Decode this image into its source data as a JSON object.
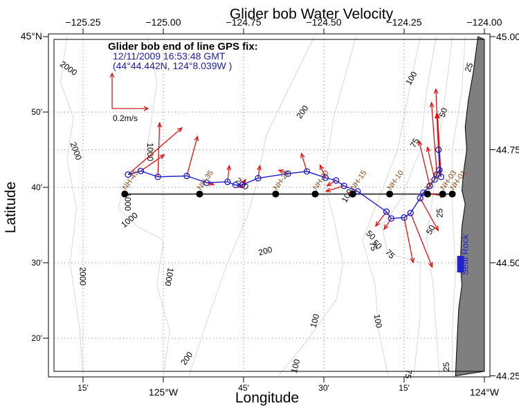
{
  "chart_data": {
    "type": "map",
    "title": "Glider bob Water Velocity",
    "xlabel": "Longitude",
    "ylabel": "Latitude",
    "xlim": [
      -125.33,
      -124.0
    ],
    "ylim": [
      44.25,
      45.0
    ],
    "grid": "dotted",
    "top_ticks": [
      {
        "value": -125.25,
        "label": "−125.25"
      },
      {
        "value": -125.0,
        "label": "−125.00"
      },
      {
        "value": -124.75,
        "label": "−124.75"
      },
      {
        "value": -124.5,
        "label": "−124.50"
      },
      {
        "value": -124.25,
        "label": "−124.25"
      },
      {
        "value": -124.0,
        "label": "−124.00"
      }
    ],
    "bottom_ticks": [
      {
        "value": -125.25,
        "label": "15'"
      },
      {
        "value": -125.0,
        "label": "125°W"
      },
      {
        "value": -124.75,
        "label": "45'"
      },
      {
        "value": -124.5,
        "label": "30'"
      },
      {
        "value": -124.25,
        "label": "15'"
      },
      {
        "value": -124.0,
        "label": "124°W"
      }
    ],
    "left_ticks": [
      {
        "value": 45.0,
        "label": "45°N"
      },
      {
        "value": 44.8333,
        "label": "50'"
      },
      {
        "value": 44.6667,
        "label": "40'"
      },
      {
        "value": 44.5,
        "label": "30'"
      },
      {
        "value": 44.3333,
        "label": "20'"
      }
    ],
    "right_ticks": [
      {
        "value": 45.0,
        "label": "45.00"
      },
      {
        "value": 44.75,
        "label": "44.75"
      },
      {
        "value": 44.5,
        "label": "44.50"
      },
      {
        "value": 44.25,
        "label": "44.25"
      }
    ],
    "gps_fix": {
      "title": "Glider bob end of line GPS fix:",
      "time": "12/11/2009 16:53:48 GMT",
      "position": "(44°44.442N, 124°8.039W )"
    },
    "scale_arrow": {
      "label": "0.2m/s",
      "speed_ms": 0.2
    },
    "place_label": {
      "text": "Seal Rock",
      "lon": -124.072,
      "lat": 44.5
    },
    "stations": [
      {
        "name": "NH-45",
        "lon": -125.12,
        "lat": 44.652
      },
      {
        "name": "NH-35",
        "lon": -124.887,
        "lat": 44.652
      },
      {
        "name": "NH-25",
        "lon": -124.65,
        "lat": 44.652
      },
      {
        "name": "NH-20",
        "lon": -124.527,
        "lat": 44.652
      },
      {
        "name": "NH-15",
        "lon": -124.41,
        "lat": 44.652
      },
      {
        "name": "NH-10",
        "lon": -124.295,
        "lat": 44.652
      },
      {
        "name": "NH-05",
        "lon": -124.177,
        "lat": 44.652
      },
      {
        "name": "NH-03",
        "lon": -124.13,
        "lat": 44.652
      },
      {
        "name": "NH-01",
        "lon": -124.1,
        "lat": 44.652
      }
    ],
    "track": [
      [
        -125.11,
        44.695
      ],
      [
        -125.07,
        44.703
      ],
      [
        -125.017,
        44.69
      ],
      [
        -124.927,
        44.692
      ],
      [
        -124.865,
        44.677
      ],
      [
        -124.8,
        44.679
      ],
      [
        -124.775,
        44.672
      ],
      [
        -124.755,
        44.672
      ],
      [
        -124.705,
        44.687
      ],
      [
        -124.612,
        44.697
      ],
      [
        -124.553,
        44.702
      ],
      [
        -124.495,
        44.688
      ],
      [
        -124.462,
        44.682
      ],
      [
        -124.437,
        44.67
      ],
      [
        -124.395,
        44.658
      ],
      [
        -124.305,
        44.613
      ],
      [
        -124.29,
        44.598
      ],
      [
        -124.25,
        44.6
      ],
      [
        -124.23,
        44.61
      ],
      [
        -124.2,
        44.643
      ],
      [
        -124.19,
        44.655
      ],
      [
        -124.17,
        44.67
      ],
      [
        -124.155,
        44.684
      ],
      [
        -124.148,
        44.695
      ],
      [
        -124.14,
        44.705
      ],
      [
        -124.135,
        44.69
      ],
      [
        -124.143,
        44.75
      ]
    ],
    "vectors": [
      {
        "lon": -125.11,
        "lat": 44.695,
        "u": 0.3,
        "v": 0.26
      },
      {
        "lon": -125.07,
        "lat": 44.703,
        "u": 0.13,
        "v": 0.09
      },
      {
        "lon": -125.017,
        "lat": 44.69,
        "u": 0.01,
        "v": 0.3
      },
      {
        "lon": -124.927,
        "lat": 44.692,
        "u": 0.06,
        "v": 0.22
      },
      {
        "lon": -124.865,
        "lat": 44.677,
        "u": 0.04,
        "v": -0.01
      },
      {
        "lon": -124.8,
        "lat": 44.679,
        "u": 0.01,
        "v": 0.09
      },
      {
        "lon": -124.775,
        "lat": 44.672,
        "u": 0.04,
        "v": -0.01
      },
      {
        "lon": -124.755,
        "lat": 44.672,
        "u": 0.02,
        "v": 0.03
      },
      {
        "lon": -124.705,
        "lat": 44.687,
        "u": 0.01,
        "v": 0.07
      },
      {
        "lon": -124.612,
        "lat": 44.697,
        "u": -0.05,
        "v": 0.02
      },
      {
        "lon": -124.553,
        "lat": 44.702,
        "u": -0.03,
        "v": 0.1
      },
      {
        "lon": -124.495,
        "lat": 44.688,
        "u": -0.03,
        "v": 0.07
      },
      {
        "lon": -124.462,
        "lat": 44.682,
        "u": -0.05,
        "v": -0.03
      },
      {
        "lon": -124.437,
        "lat": 44.67,
        "u": -0.1,
        "v": -0.03
      },
      {
        "lon": -124.395,
        "lat": 44.658,
        "u": -0.05,
        "v": -0.01
      },
      {
        "lon": -124.305,
        "lat": 44.613,
        "u": -0.06,
        "v": -0.08
      },
      {
        "lon": -124.29,
        "lat": 44.598,
        "u": -0.04,
        "v": -0.06
      },
      {
        "lon": -124.25,
        "lat": 44.6,
        "u": 0.05,
        "v": -0.25
      },
      {
        "lon": -124.23,
        "lat": 44.61,
        "u": 0.12,
        "v": -0.3
      },
      {
        "lon": -124.2,
        "lat": 44.643,
        "u": 0.1,
        "v": -0.18
      },
      {
        "lon": -124.19,
        "lat": 44.655,
        "u": 0.12,
        "v": -0.02
      },
      {
        "lon": -124.17,
        "lat": 44.67,
        "u": -0.06,
        "v": 0.25
      },
      {
        "lon": -124.155,
        "lat": 44.684,
        "u": -0.04,
        "v": 0.18
      },
      {
        "lon": -124.148,
        "lat": 44.695,
        "u": -0.03,
        "v": 0.4
      },
      {
        "lon": -124.14,
        "lat": 44.705,
        "u": -0.02,
        "v": 0.45
      },
      {
        "lon": -124.135,
        "lat": 44.69,
        "u": -0.02,
        "v": 0.35
      },
      {
        "lon": -124.143,
        "lat": 44.75,
        "u": -0.01,
        "v": 0.2
      }
    ],
    "contour_labels": [
      {
        "text": "2000",
        "lon": -125.3,
        "lat": 44.925,
        "rotate": 35
      },
      {
        "text": "2000",
        "lon": -125.28,
        "lat": 44.745,
        "rotate": 70
      },
      {
        "text": "2000",
        "lon": -125.26,
        "lat": 44.47,
        "rotate": 90
      },
      {
        "text": "1000",
        "lon": -125.05,
        "lat": 44.745,
        "rotate": 90
      },
      {
        "text": "1000",
        "lon": -125.12,
        "lat": 44.635,
        "rotate": 90
      },
      {
        "text": "1000",
        "lon": -125.1,
        "lat": 44.59,
        "rotate": -40
      },
      {
        "text": "1000",
        "lon": -124.99,
        "lat": 44.47,
        "rotate": 100
      },
      {
        "text": "200",
        "lon": -124.76,
        "lat": 44.67,
        "rotate": 40
      },
      {
        "text": "200",
        "lon": -124.56,
        "lat": 44.83,
        "rotate": -55
      },
      {
        "text": "200",
        "lon": -124.68,
        "lat": 44.52,
        "rotate": -15
      },
      {
        "text": "200",
        "lon": -124.92,
        "lat": 44.285,
        "rotate": -55
      },
      {
        "text": "100",
        "lon": -124.42,
        "lat": 44.645,
        "rotate": -60
      },
      {
        "text": "100",
        "lon": -124.52,
        "lat": 44.37,
        "rotate": -75
      },
      {
        "text": "100",
        "lon": -124.34,
        "lat": 44.37,
        "rotate": 80
      },
      {
        "text": "100",
        "lon": -124.58,
        "lat": 44.27,
        "rotate": -75
      },
      {
        "text": "100",
        "lon": -124.22,
        "lat": 44.905,
        "rotate": -60
      },
      {
        "text": "75",
        "lon": -124.21,
        "lat": 44.762,
        "rotate": -60
      },
      {
        "text": "75",
        "lon": -124.355,
        "lat": 44.535,
        "rotate": 75
      },
      {
        "text": "75",
        "lon": -124.3,
        "lat": 44.515,
        "rotate": 45
      },
      {
        "text": "75",
        "lon": -124.245,
        "lat": 44.255,
        "rotate": 100
      },
      {
        "text": "50",
        "lon": -124.36,
        "lat": 44.557,
        "rotate": 45
      },
      {
        "text": "50",
        "lon": -124.34,
        "lat": 44.536,
        "rotate": 45
      },
      {
        "text": "50",
        "lon": -124.12,
        "lat": 44.83,
        "rotate": -70
      },
      {
        "text": "50",
        "lon": -124.16,
        "lat": 44.57,
        "rotate": -60
      },
      {
        "text": "25",
        "lon": -124.04,
        "lat": 44.93,
        "rotate": -70
      },
      {
        "text": "25",
        "lon": -124.13,
        "lat": 44.61,
        "rotate": -90
      },
      {
        "text": "25",
        "lon": -124.11,
        "lat": 44.27,
        "rotate": -90
      }
    ]
  },
  "colors": {
    "track": "#1a1acc",
    "vectors": "#e01010",
    "stations": "#000000",
    "station_labels": "#8B4513",
    "land": "#7f7f7f",
    "contours": "#d8d8d8",
    "gps_text": "#1a1aa8",
    "place_label": "#2222cc"
  }
}
